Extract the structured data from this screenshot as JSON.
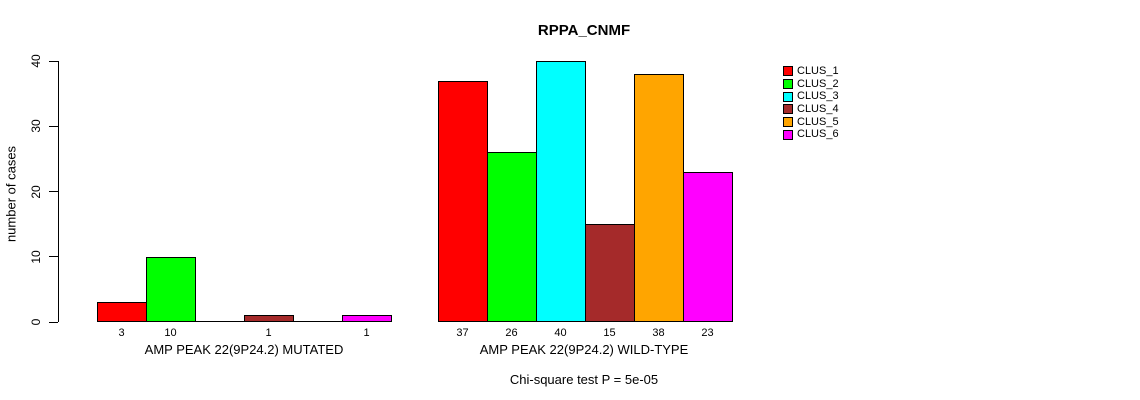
{
  "title": "RPPA_CNMF",
  "chart_data": {
    "type": "bar",
    "title": "RPPA_CNMF",
    "ylabel": "number of cases",
    "ylim": [
      0,
      40
    ],
    "yticks": [
      0,
      10,
      20,
      30,
      40
    ],
    "grid": false,
    "legend_position": "right",
    "series": [
      {
        "name": "CLUS_1",
        "color": "#FF0000"
      },
      {
        "name": "CLUS_2",
        "color": "#00FF00"
      },
      {
        "name": "CLUS_3",
        "color": "#00FFFF"
      },
      {
        "name": "CLUS_4",
        "color": "#A52A2A"
      },
      {
        "name": "CLUS_5",
        "color": "#FFA500"
      },
      {
        "name": "CLUS_6",
        "color": "#FF00FF"
      }
    ],
    "groups": [
      {
        "label": "AMP PEAK 22(9P24.2) MUTATED",
        "values": [
          3,
          10,
          0,
          1,
          0,
          1
        ]
      },
      {
        "label": "AMP PEAK 22(9P24.2) WILD-TYPE",
        "values": [
          37,
          26,
          40,
          15,
          38,
          23
        ]
      }
    ],
    "annotation": "Chi-square test P = 5e-05"
  }
}
